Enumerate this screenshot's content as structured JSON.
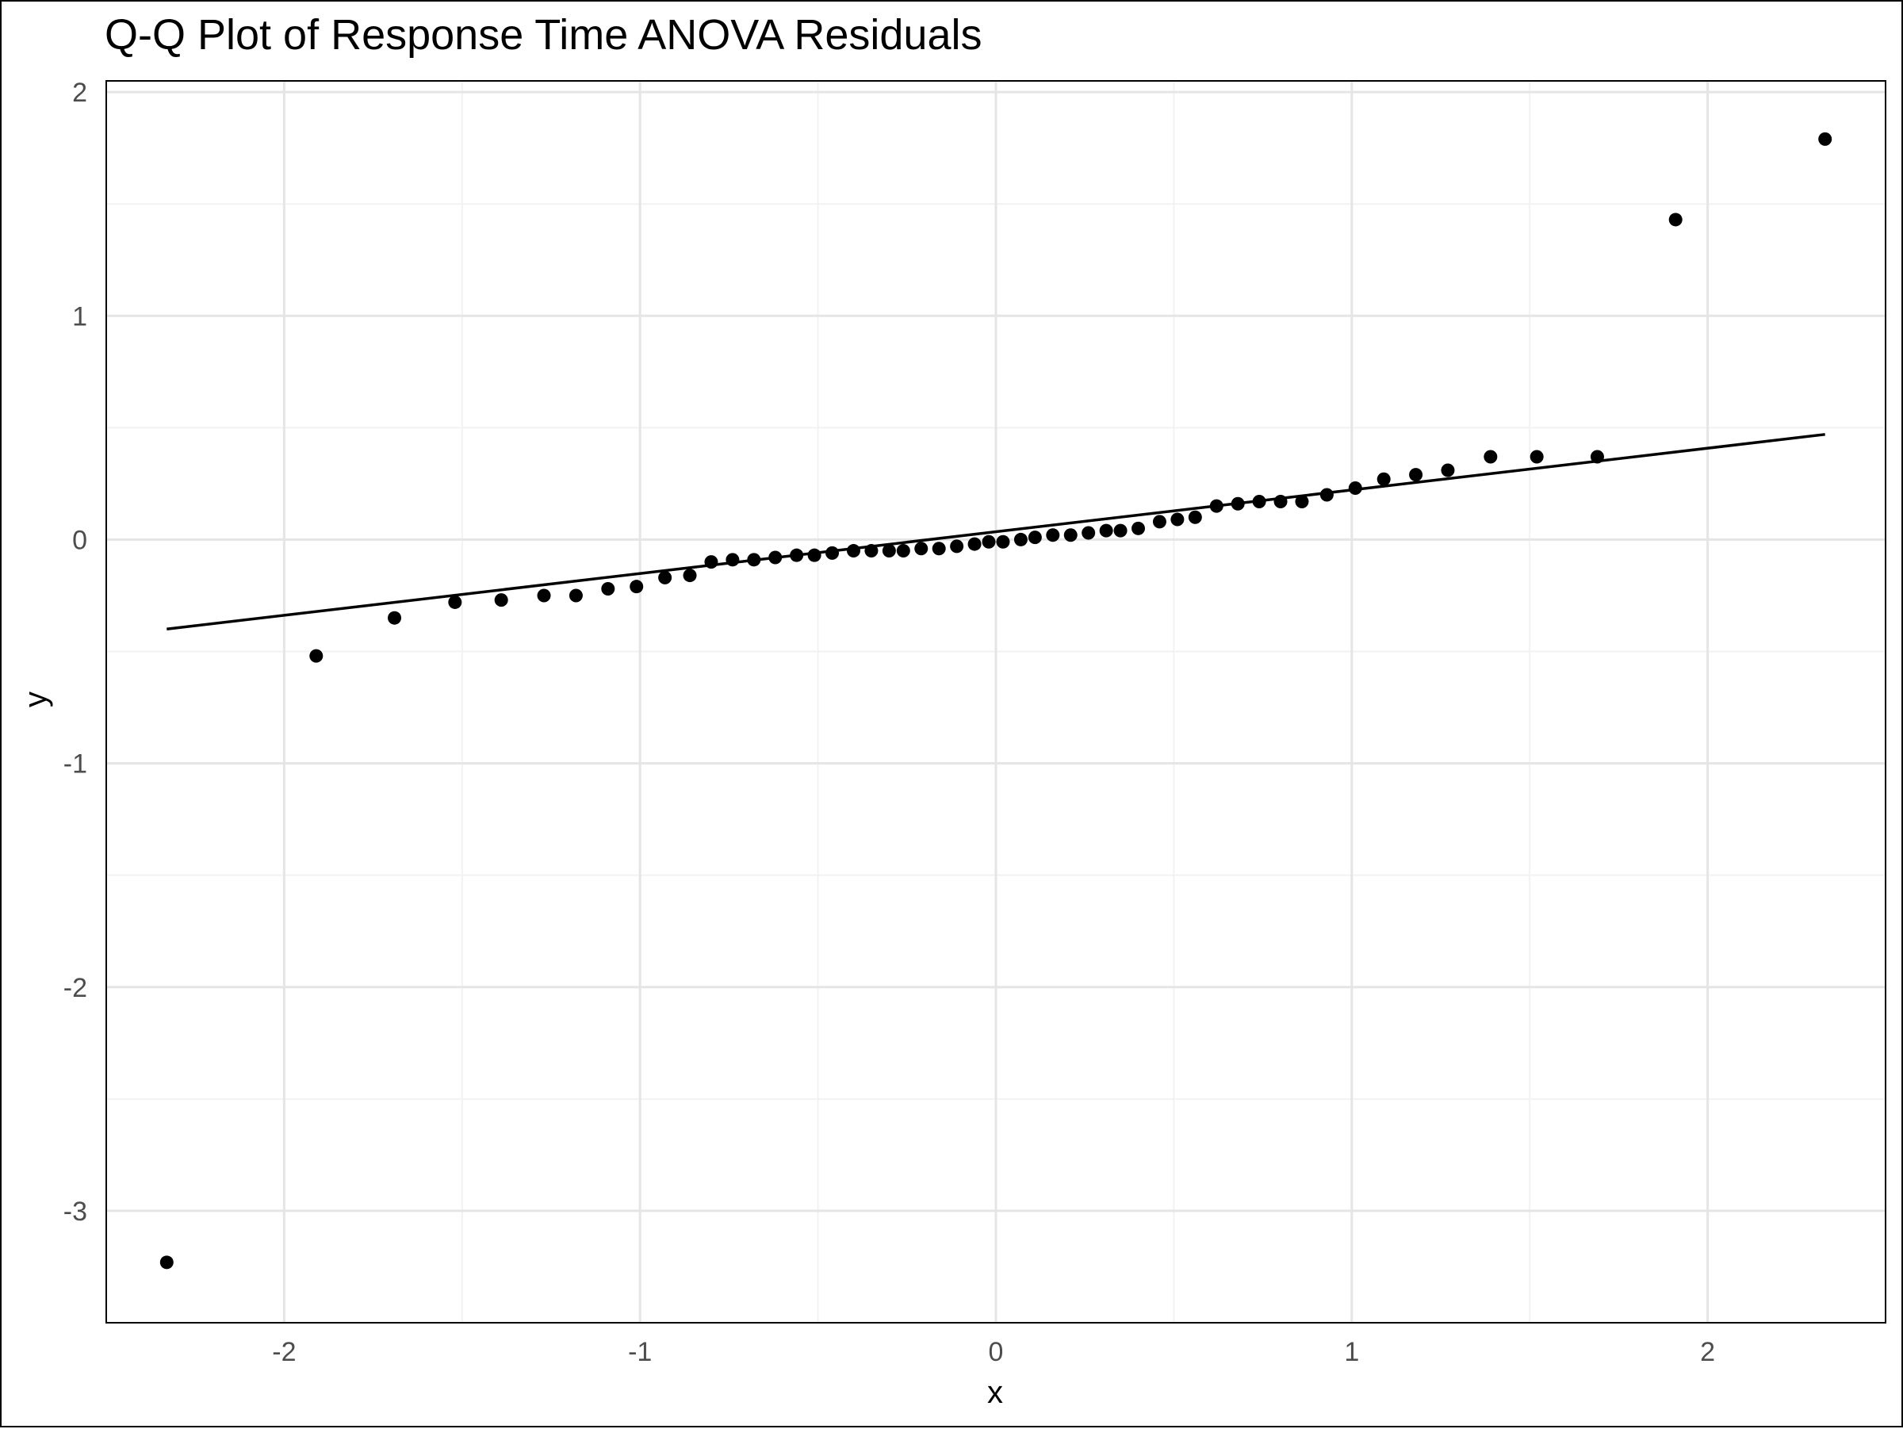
{
  "chart_data": {
    "type": "scatter",
    "title": "Q-Q Plot of Response Time ANOVA Residuals",
    "xlabel": "x",
    "ylabel": "y",
    "xlim": [
      -2.5,
      2.5
    ],
    "ylim": [
      -3.5,
      2.05
    ],
    "xticks": [
      -2,
      -1,
      0,
      1,
      2
    ],
    "xtick_labels": [
      "-2",
      "-1",
      "0",
      "1",
      "2"
    ],
    "yticks": [
      -3,
      -2,
      -1,
      0,
      1,
      2
    ],
    "ytick_labels": [
      "-3",
      "-2",
      "-1",
      "0",
      "1",
      "2"
    ],
    "grid": true,
    "legend": "none",
    "colors": {
      "points": "#000000",
      "reference_line": "#000000",
      "grid_major": "#e5e5e5",
      "grid_minor": "#f2f2f2",
      "panel_border": "#000000",
      "tick_text": "#4d4d4d"
    },
    "series": [
      {
        "kind": "points",
        "x": [
          -2.33,
          -1.91,
          -1.69,
          -1.52,
          -1.39,
          -1.27,
          -1.18,
          -1.09,
          -1.01,
          -0.93,
          -0.86,
          -0.8,
          -0.74,
          -0.68,
          -0.62,
          -0.56,
          -0.51,
          -0.46,
          -0.4,
          -0.35,
          -0.3,
          -0.26,
          -0.21,
          -0.16,
          -0.11,
          -0.06,
          -0.02,
          0.02,
          0.07,
          0.11,
          0.16,
          0.21,
          0.26,
          0.31,
          0.35,
          0.4,
          0.46,
          0.51,
          0.56,
          0.62,
          0.68,
          0.74,
          0.8,
          0.86,
          0.93,
          1.01,
          1.09,
          1.18,
          1.27,
          1.39,
          1.52,
          1.69,
          1.91,
          2.33
        ],
        "y": [
          -3.23,
          -0.52,
          -0.35,
          -0.28,
          -0.27,
          -0.25,
          -0.25,
          -0.22,
          -0.21,
          -0.17,
          -0.16,
          -0.1,
          -0.09,
          -0.09,
          -0.08,
          -0.07,
          -0.07,
          -0.06,
          -0.05,
          -0.05,
          -0.05,
          -0.05,
          -0.04,
          -0.04,
          -0.03,
          -0.02,
          -0.01,
          -0.01,
          0.0,
          0.01,
          0.02,
          0.02,
          0.03,
          0.04,
          0.04,
          0.05,
          0.08,
          0.09,
          0.1,
          0.15,
          0.16,
          0.17,
          0.17,
          0.17,
          0.2,
          0.23,
          0.27,
          0.29,
          0.31,
          0.37,
          0.37,
          0.37,
          1.43,
          1.79
        ]
      },
      {
        "kind": "line",
        "x": [
          -2.33,
          2.33
        ],
        "y": [
          -0.4,
          0.47
        ]
      }
    ]
  }
}
